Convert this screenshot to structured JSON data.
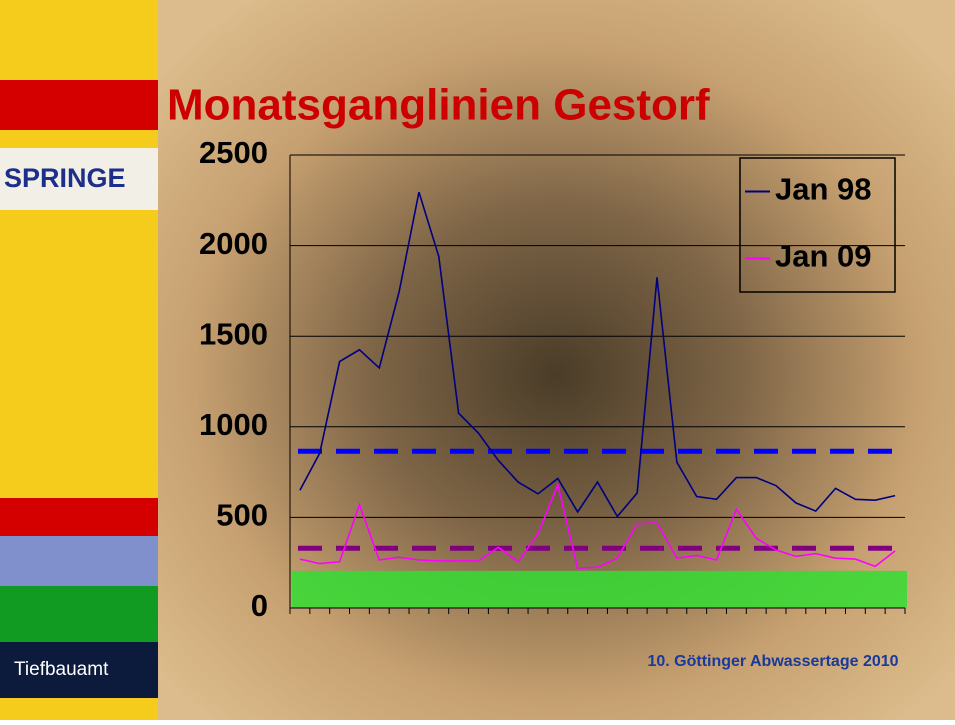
{
  "logo": "SPRINGE",
  "department": "Tiefbauamt",
  "footer": "10. Göttinger Abwassertage 2010",
  "chart_data": {
    "type": "line",
    "title": "Monatsganglinien Gestorf",
    "categories": [
      null,
      null,
      null,
      null,
      null,
      null,
      null,
      null,
      null,
      null,
      null,
      null,
      null,
      null,
      null,
      null,
      null,
      null,
      null,
      null,
      null,
      null,
      null,
      null,
      null,
      null,
      null,
      null,
      null,
      null,
      null
    ],
    "series": [
      {
        "name": "Jan 98",
        "color": "#000080",
        "values": [
          650,
          855,
          1360,
          1425,
          1325,
          1745,
          2295,
          1940,
          1075,
          965,
          815,
          695,
          630,
          715,
          530,
          695,
          505,
          635,
          1825,
          805,
          615,
          600,
          720,
          720,
          675,
          580,
          535,
          660,
          600,
          595,
          620
        ]
      },
      {
        "name": "Jan 09",
        "color": "#ff00ff",
        "values": [
          270,
          245,
          255,
          570,
          265,
          280,
          265,
          260,
          260,
          260,
          335,
          255,
          410,
          680,
          220,
          225,
          275,
          465,
          470,
          275,
          290,
          265,
          545,
          385,
          320,
          285,
          300,
          275,
          270,
          230,
          315
        ]
      }
    ],
    "reference_lines": [
      {
        "value": 865,
        "color": "#0000ff"
      },
      {
        "value": 330,
        "color": "#800080"
      }
    ],
    "band": {
      "range": [
        0,
        205
      ],
      "color": "#33dd33"
    },
    "ylim": [
      0,
      2500
    ],
    "yticks": [
      0,
      500,
      1000,
      1500,
      2000,
      2500
    ],
    "grid": true,
    "legend": "top-right"
  }
}
